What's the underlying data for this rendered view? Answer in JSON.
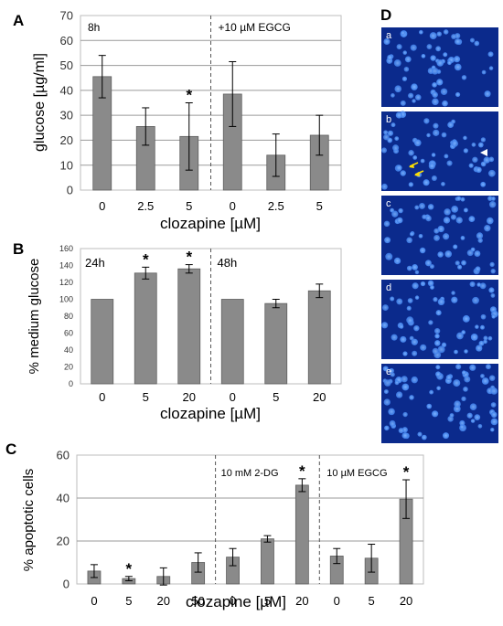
{
  "chart_data": [
    {
      "type": "bar",
      "panel_label": "A",
      "xlabel": "clozapine [µM]",
      "ylabel": "glucose  [µg/ml]",
      "ylim": [
        0,
        70
      ],
      "yticks": [
        0,
        10,
        20,
        30,
        40,
        50,
        60,
        70
      ],
      "categories": [
        "0",
        "2.5",
        "5",
        "0",
        "2.5",
        "5"
      ],
      "values": [
        45.5,
        25.5,
        21.5,
        38.5,
        14,
        22
      ],
      "errors": [
        8.5,
        7.5,
        13.5,
        13,
        8.5,
        8
      ],
      "significant": [
        false,
        false,
        true,
        false,
        false,
        false
      ],
      "groups": [
        {
          "label": "8h",
          "start": 0,
          "end": 2
        },
        {
          "label": "+10 µM EGCG",
          "start": 3,
          "end": 5
        }
      ],
      "grid": true,
      "bar_color": "#8a8a8a"
    },
    {
      "type": "bar",
      "panel_label": "B",
      "xlabel": "clozapine [µM]",
      "ylabel": "% medium  glucose",
      "ylim": [
        0,
        160
      ],
      "yticks": [
        0,
        20,
        40,
        60,
        80,
        100,
        120,
        140,
        160
      ],
      "categories": [
        "0",
        "5",
        "20",
        "0",
        "5",
        "20"
      ],
      "values": [
        100,
        131,
        136,
        100,
        95,
        110
      ],
      "errors": [
        0,
        7,
        5,
        0,
        5,
        8
      ],
      "significant": [
        false,
        true,
        true,
        false,
        false,
        false
      ],
      "groups": [
        {
          "label": "24h",
          "start": 0,
          "end": 2
        },
        {
          "label": "48h",
          "start": 3,
          "end": 5
        }
      ],
      "grid": false,
      "bar_color": "#8a8a8a"
    },
    {
      "type": "bar",
      "panel_label": "C",
      "xlabel": "clozapine [µM]",
      "ylabel": "% apoptotic  cells",
      "ylim": [
        0,
        60
      ],
      "yticks": [
        0,
        20,
        40,
        60
      ],
      "categories": [
        "0",
        "5",
        "20",
        "50",
        "0",
        "5",
        "20",
        "0",
        "5",
        "20"
      ],
      "values": [
        6,
        2.5,
        3.5,
        10,
        12.5,
        21,
        46,
        13,
        12,
        39.5
      ],
      "errors": [
        3,
        1,
        4,
        4.5,
        4,
        1.5,
        3,
        3.5,
        6.5,
        9
      ],
      "significant": [
        false,
        true,
        false,
        false,
        false,
        false,
        true,
        false,
        false,
        true
      ],
      "groups": [
        {
          "label": "",
          "start": 0,
          "end": 3
        },
        {
          "label": "10 mM 2-DG",
          "start": 4,
          "end": 6
        },
        {
          "label": "10 µM EGCG",
          "start": 7,
          "end": 9
        }
      ],
      "grid": true,
      "bar_color": "#8a8a8a"
    }
  ],
  "panel_d": {
    "panel_label": "D",
    "images": [
      {
        "label": "a",
        "arrows": false,
        "arrowhead": false
      },
      {
        "label": "b",
        "arrows": true,
        "arrowhead": true
      },
      {
        "label": "c",
        "arrows": false,
        "arrowhead": false
      },
      {
        "label": "d",
        "arrows": false,
        "arrowhead": false
      },
      {
        "label": "e",
        "arrows": false,
        "arrowhead": false
      }
    ],
    "background_color": "#0b2a8c",
    "nucleus_color": "#3a7be8",
    "arrow_color": "#ffe000"
  }
}
